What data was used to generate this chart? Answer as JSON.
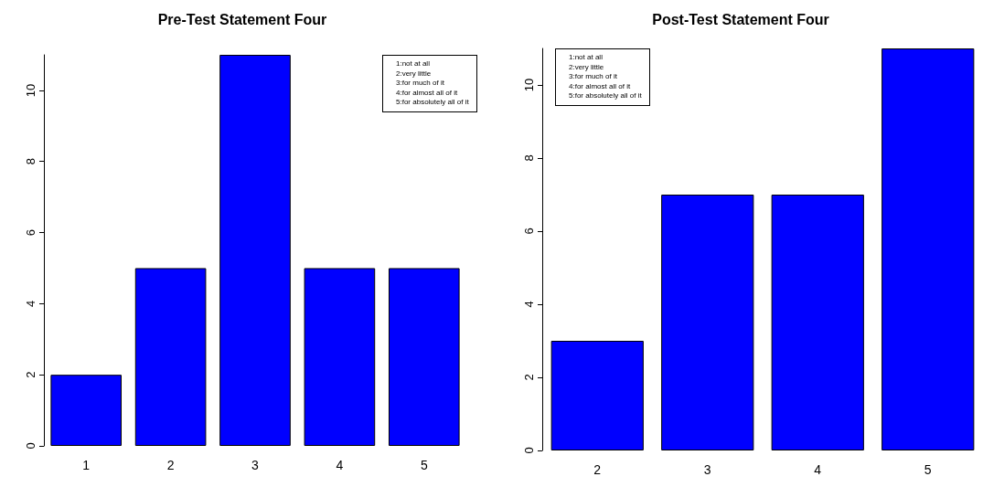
{
  "chart_data": [
    {
      "type": "bar",
      "title": "Pre-Test Statement Four",
      "categories": [
        "1",
        "2",
        "3",
        "4",
        "5"
      ],
      "values": [
        2,
        5,
        11,
        5,
        5
      ],
      "color": "#0000ff",
      "ylim": [
        0,
        11
      ],
      "yticks": [
        0,
        2,
        4,
        6,
        8,
        10
      ],
      "grid": false,
      "annotations": [
        "1:not at all",
        "2:very little",
        "3:for much of it",
        "4:for almost all of it",
        "5:for absolutely all of it"
      ]
    },
    {
      "type": "bar",
      "title": "Post-Test Statement Four",
      "categories": [
        "2",
        "3",
        "4",
        "5"
      ],
      "values": [
        3,
        7,
        7,
        11
      ],
      "color": "#0000ff",
      "ylim": [
        0,
        11
      ],
      "yticks": [
        0,
        2,
        4,
        6,
        8,
        10
      ],
      "grid": false,
      "annotations": [
        "1:not at all",
        "2:very little",
        "3:for much of it",
        "4:for almost all of it",
        "5:for absolutely all of it"
      ]
    }
  ]
}
